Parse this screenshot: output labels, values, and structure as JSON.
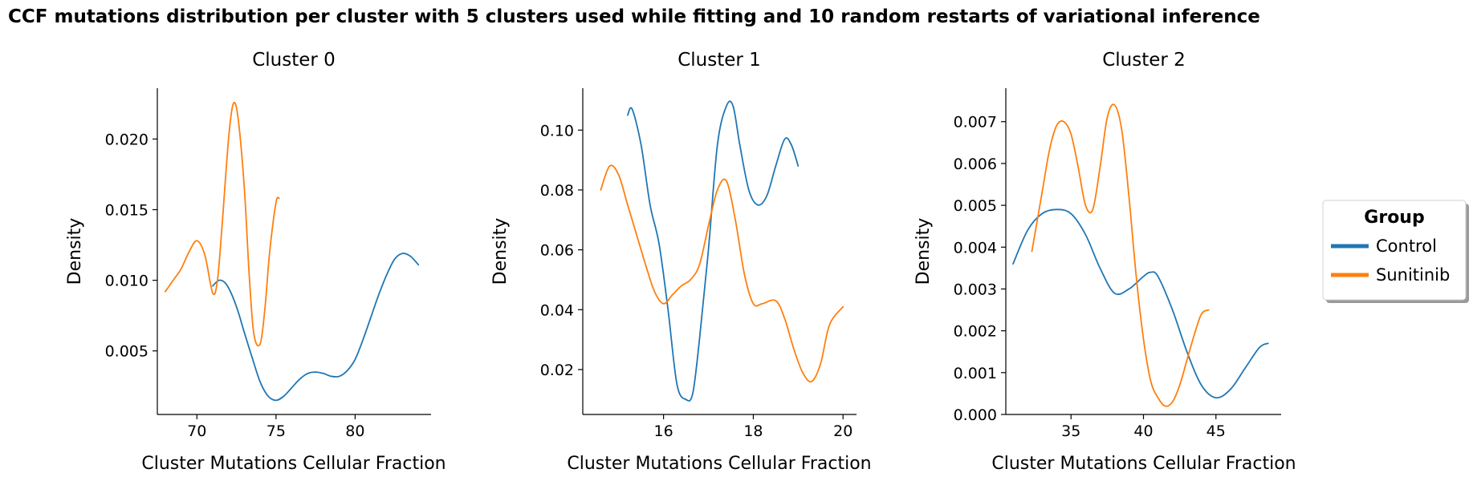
{
  "figure_title": "CCF mutations distribution per cluster with 5 clusters used while fitting and 10 random restarts of variational inference",
  "legend": {
    "title": "Group",
    "placement": "right",
    "entries": [
      {
        "label": "Control",
        "color": "#1f77b4"
      },
      {
        "label": "Sunitinib",
        "color": "#ff7f0e"
      }
    ]
  },
  "chart_data": [
    {
      "type": "line",
      "title": "Cluster 0",
      "xlabel": "Cluster Mutations Cellular Fraction",
      "ylabel": "Density",
      "xlim": [
        67.5,
        84.8
      ],
      "ylim": [
        0.0005,
        0.0236
      ],
      "xticks": [
        70,
        75,
        80
      ],
      "yticks": [
        0.005,
        0.01,
        0.015,
        0.02
      ],
      "ytick_labels": [
        "0.005",
        "0.010",
        "0.015",
        "0.020"
      ],
      "grid": false,
      "series": [
        {
          "name": "Control",
          "color": "#1f77b4",
          "x": [
            71.0,
            71.4,
            71.8,
            72.2,
            72.6,
            73.0,
            73.5,
            74.0,
            74.5,
            75.0,
            75.5,
            76.0,
            76.5,
            77.0,
            77.5,
            78.0,
            78.5,
            79.0,
            79.5,
            80.0,
            80.5,
            81.0,
            81.5,
            82.0,
            82.5,
            83.0,
            83.5,
            84.0
          ],
          "y": [
            0.0096,
            0.01,
            0.0098,
            0.009,
            0.0078,
            0.0063,
            0.0045,
            0.0028,
            0.0018,
            0.0015,
            0.0018,
            0.0024,
            0.003,
            0.0034,
            0.0035,
            0.0034,
            0.0032,
            0.0032,
            0.0036,
            0.0044,
            0.0058,
            0.0074,
            0.009,
            0.0104,
            0.0115,
            0.0119,
            0.0117,
            0.0111
          ]
        },
        {
          "name": "Sunitinib",
          "color": "#ff7f0e",
          "x": [
            68.0,
            68.5,
            69.0,
            69.5,
            70.0,
            70.5,
            71.0,
            71.3,
            71.6,
            72.0,
            72.3,
            72.6,
            73.0,
            73.3,
            73.6,
            74.0,
            74.3,
            74.6,
            75.0,
            75.2
          ],
          "y": [
            0.0092,
            0.01,
            0.0108,
            0.012,
            0.0128,
            0.0118,
            0.0091,
            0.01,
            0.014,
            0.02,
            0.0225,
            0.0215,
            0.0165,
            0.0105,
            0.0062,
            0.0055,
            0.008,
            0.012,
            0.0155,
            0.0158
          ]
        }
      ]
    },
    {
      "type": "line",
      "title": "Cluster 1",
      "xlabel": "Cluster Mutations Cellular Fraction",
      "ylabel": "Density",
      "xlim": [
        14.2,
        20.3
      ],
      "ylim": [
        0.005,
        0.114
      ],
      "xticks": [
        16,
        18,
        20
      ],
      "yticks": [
        0.02,
        0.04,
        0.06,
        0.08,
        0.1
      ],
      "ytick_labels": [
        "0.02",
        "0.04",
        "0.06",
        "0.08",
        "0.10"
      ],
      "grid": false,
      "series": [
        {
          "name": "Control",
          "color": "#1f77b4",
          "x": [
            15.2,
            15.3,
            15.5,
            15.7,
            15.9,
            16.1,
            16.3,
            16.5,
            16.65,
            16.8,
            17.0,
            17.2,
            17.4,
            17.55,
            17.7,
            17.9,
            18.1,
            18.3,
            18.5,
            18.7,
            18.85,
            19.0
          ],
          "y": [
            0.105,
            0.107,
            0.095,
            0.075,
            0.062,
            0.04,
            0.015,
            0.01,
            0.012,
            0.03,
            0.06,
            0.095,
            0.108,
            0.108,
            0.095,
            0.08,
            0.075,
            0.078,
            0.088,
            0.097,
            0.095,
            0.088
          ]
        },
        {
          "name": "Sunitinib",
          "color": "#ff7f0e",
          "x": [
            14.6,
            14.8,
            15.0,
            15.2,
            15.4,
            15.6,
            15.8,
            16.0,
            16.2,
            16.4,
            16.6,
            16.8,
            17.0,
            17.2,
            17.4,
            17.6,
            17.8,
            18.0,
            18.2,
            18.5,
            18.7,
            18.9,
            19.1,
            19.3,
            19.5,
            19.7,
            20.0
          ],
          "y": [
            0.08,
            0.088,
            0.085,
            0.075,
            0.065,
            0.055,
            0.046,
            0.042,
            0.045,
            0.048,
            0.05,
            0.055,
            0.068,
            0.08,
            0.083,
            0.07,
            0.052,
            0.042,
            0.042,
            0.043,
            0.037,
            0.027,
            0.019,
            0.016,
            0.022,
            0.035,
            0.041
          ]
        }
      ]
    },
    {
      "type": "line",
      "title": "Cluster 2",
      "xlabel": "Cluster Mutations Cellular Fraction",
      "ylabel": "Density",
      "xlim": [
        30.5,
        49.5
      ],
      "ylim": [
        0.0,
        0.0078
      ],
      "xticks": [
        35,
        40,
        45
      ],
      "yticks": [
        0.0,
        0.001,
        0.002,
        0.003,
        0.004,
        0.005,
        0.006,
        0.007
      ],
      "ytick_labels": [
        "0.000",
        "0.001",
        "0.002",
        "0.003",
        "0.004",
        "0.005",
        "0.006",
        "0.007"
      ],
      "grid": false,
      "series": [
        {
          "name": "Control",
          "color": "#1f77b4",
          "x": [
            31.0,
            32.0,
            33.0,
            34.0,
            35.0,
            36.0,
            37.0,
            38.0,
            39.0,
            40.0,
            40.5,
            41.0,
            42.0,
            43.0,
            44.0,
            45.0,
            46.0,
            47.0,
            48.0,
            48.6
          ],
          "y": [
            0.0036,
            0.0044,
            0.0048,
            0.0049,
            0.0048,
            0.0043,
            0.0035,
            0.0029,
            0.003,
            0.0033,
            0.0034,
            0.0033,
            0.0025,
            0.0015,
            0.0007,
            0.0004,
            0.0006,
            0.0011,
            0.0016,
            0.0017
          ]
        },
        {
          "name": "Sunitinib",
          "color": "#ff7f0e",
          "x": [
            32.3,
            33.0,
            33.5,
            34.0,
            34.5,
            35.0,
            35.5,
            36.0,
            36.5,
            37.0,
            37.5,
            38.0,
            38.5,
            39.0,
            39.5,
            40.0,
            40.5,
            41.0,
            41.5,
            42.0,
            42.5,
            43.0,
            43.5,
            44.0,
            44.5
          ],
          "y": [
            0.0039,
            0.0053,
            0.0063,
            0.0069,
            0.007,
            0.0067,
            0.0059,
            0.005,
            0.0049,
            0.0059,
            0.0071,
            0.0074,
            0.0068,
            0.0052,
            0.0033,
            0.0018,
            0.0008,
            0.0004,
            0.0002,
            0.0003,
            0.0007,
            0.0013,
            0.0019,
            0.0024,
            0.0025
          ]
        }
      ]
    }
  ]
}
